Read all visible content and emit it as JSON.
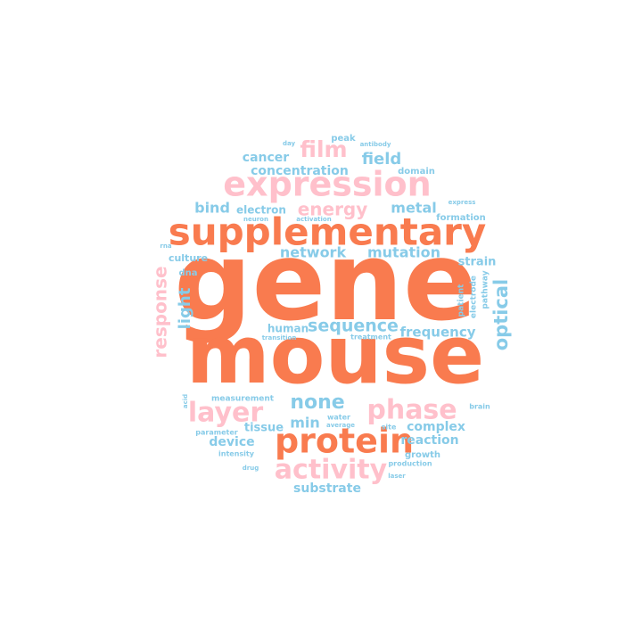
{
  "colors": {
    "primary": "#f97b4f",
    "secondary": "#ffc0cb",
    "tertiary": "#87cbe8"
  },
  "words": [
    {
      "text": "gene",
      "c": "primary"
    },
    {
      "text": "mouse",
      "c": "primary"
    },
    {
      "text": "supplementary",
      "c": "primary"
    },
    {
      "text": "protein",
      "c": "primary"
    },
    {
      "text": "expression",
      "c": "secondary"
    },
    {
      "text": "layer",
      "c": "secondary"
    },
    {
      "text": "phase",
      "c": "secondary"
    },
    {
      "text": "activity",
      "c": "secondary"
    },
    {
      "text": "film",
      "c": "secondary"
    },
    {
      "text": "energy",
      "c": "secondary"
    },
    {
      "text": "response",
      "c": "secondary"
    },
    {
      "text": "none",
      "c": "tertiary"
    },
    {
      "text": "optical",
      "c": "tertiary"
    },
    {
      "text": "light",
      "c": "tertiary"
    },
    {
      "text": "sequence",
      "c": "tertiary"
    },
    {
      "text": "network",
      "c": "tertiary"
    },
    {
      "text": "mutation",
      "c": "tertiary"
    },
    {
      "text": "frequency",
      "c": "tertiary"
    },
    {
      "text": "field",
      "c": "tertiary"
    },
    {
      "text": "metal",
      "c": "tertiary"
    },
    {
      "text": "bind",
      "c": "tertiary"
    },
    {
      "text": "min",
      "c": "tertiary"
    },
    {
      "text": "cancer",
      "c": "tertiary"
    },
    {
      "text": "concentration",
      "c": "tertiary"
    },
    {
      "text": "strain",
      "c": "tertiary"
    },
    {
      "text": "complex",
      "c": "tertiary"
    },
    {
      "text": "device",
      "c": "tertiary"
    },
    {
      "text": "substrate",
      "c": "tertiary"
    },
    {
      "text": "reaction",
      "c": "tertiary"
    },
    {
      "text": "tissue",
      "c": "tertiary"
    },
    {
      "text": "human",
      "c": "tertiary"
    },
    {
      "text": "electron",
      "c": "tertiary"
    },
    {
      "text": "culture",
      "c": "tertiary"
    },
    {
      "text": "formation",
      "c": "tertiary"
    },
    {
      "text": "growth",
      "c": "tertiary"
    },
    {
      "text": "dna",
      "c": "tertiary"
    },
    {
      "text": "measurement",
      "c": "tertiary"
    },
    {
      "text": "patient",
      "c": "tertiary"
    },
    {
      "text": "electrode",
      "c": "tertiary"
    },
    {
      "text": "pathway",
      "c": "tertiary"
    },
    {
      "text": "treatment",
      "c": "tertiary"
    },
    {
      "text": "transition",
      "c": "tertiary"
    },
    {
      "text": "domain",
      "c": "tertiary"
    },
    {
      "text": "peak",
      "c": "tertiary"
    },
    {
      "text": "antibody",
      "c": "tertiary"
    },
    {
      "text": "day",
      "c": "tertiary"
    },
    {
      "text": "express",
      "c": "tertiary"
    },
    {
      "text": "neuron",
      "c": "tertiary"
    },
    {
      "text": "activation",
      "c": "tertiary"
    },
    {
      "text": "rna",
      "c": "tertiary"
    },
    {
      "text": "acid",
      "c": "tertiary"
    },
    {
      "text": "parameter",
      "c": "tertiary"
    },
    {
      "text": "intensity",
      "c": "tertiary"
    },
    {
      "text": "drug",
      "c": "tertiary"
    },
    {
      "text": "water",
      "c": "tertiary"
    },
    {
      "text": "average",
      "c": "tertiary"
    },
    {
      "text": "site",
      "c": "tertiary"
    },
    {
      "text": "production",
      "c": "tertiary"
    },
    {
      "text": "laser",
      "c": "tertiary"
    },
    {
      "text": "brain",
      "c": "tertiary"
    }
  ]
}
